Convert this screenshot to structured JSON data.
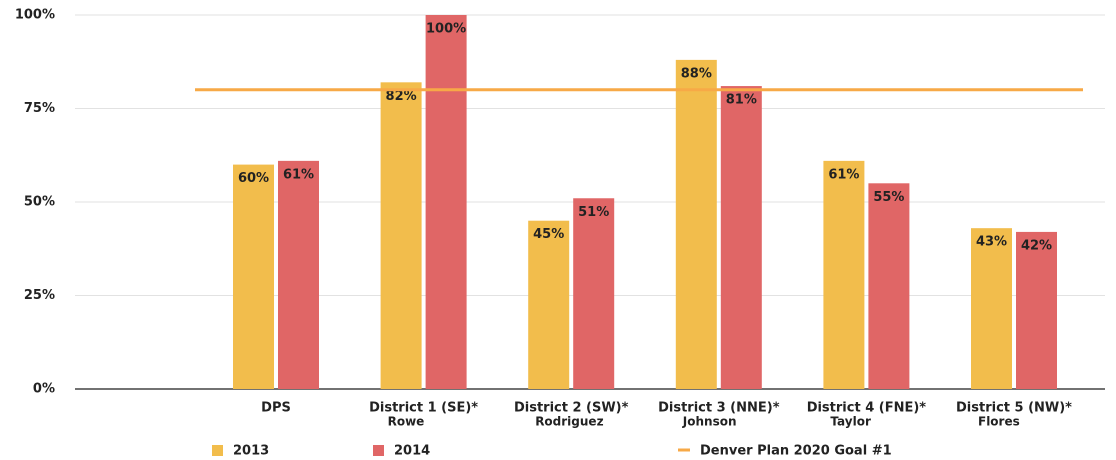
{
  "chart_data": {
    "type": "bar",
    "categories": [
      "DPS",
      "District 1 (SE)*",
      "District 2 (SW)*",
      "District 3 (NNE)*",
      "District 4 (FNE)*",
      "District 5 (NW)*"
    ],
    "category_sublabels": [
      null,
      "Rowe",
      "Rodriguez",
      "Johnson",
      "Taylor",
      "Flores"
    ],
    "series": [
      {
        "name": "2013",
        "color": "#f2bd4c",
        "values": [
          60,
          82,
          45,
          88,
          61,
          43
        ],
        "value_labels": [
          "60%",
          "82%",
          "45%",
          "88%",
          "61%",
          "43%"
        ]
      },
      {
        "name": "2014",
        "color": "#e06666",
        "values": [
          61,
          100,
          51,
          81,
          55,
          42
        ],
        "value_labels": [
          "61%",
          "100%",
          "51%",
          "81%",
          "55%",
          "42%"
        ]
      }
    ],
    "reference_line": {
      "name": "Denver Plan 2020 Goal #1",
      "value": 80,
      "color": "#f7a947"
    },
    "ylim": [
      0,
      100
    ],
    "yticks": [
      {
        "value": 0,
        "label": "0%"
      },
      {
        "value": 25,
        "label": "25%"
      },
      {
        "value": 50,
        "label": "50%"
      },
      {
        "value": 75,
        "label": "75%"
      },
      {
        "value": 100,
        "label": "100%"
      }
    ],
    "grid": true
  }
}
